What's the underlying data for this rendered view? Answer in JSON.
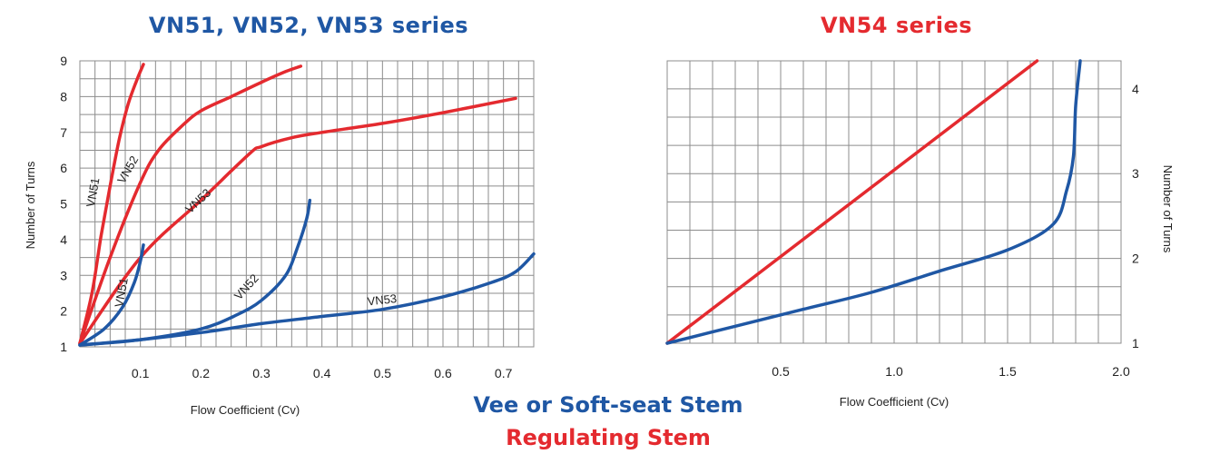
{
  "colors": {
    "vee_stem": "#1f57a4",
    "regulating_stem": "#e42a2f",
    "grid": "#8c8c8c",
    "text": "#222222"
  },
  "legend": {
    "vee_label": "Vee or Soft-seat Stem",
    "regulating_label": "Regulating Stem"
  },
  "chart_data": [
    {
      "type": "line",
      "title": "VN51, VN52, VN53 series",
      "xlabel": "Flow Coefficient (Cv)",
      "ylabel": "Number of Turns",
      "xlim": [
        0,
        0.75
      ],
      "ylim": [
        1,
        9
      ],
      "x_ticks": [
        "0.1",
        "0.2",
        "0.3",
        "0.4",
        "0.5",
        "0.6",
        "0.7"
      ],
      "y_ticks": [
        "1",
        "2",
        "3",
        "4",
        "5",
        "6",
        "7",
        "8",
        "9"
      ],
      "grid": true,
      "series": [
        {
          "name": "VN51",
          "stem": "regulating",
          "label": "VN51",
          "x": [
            0.0,
            0.02,
            0.035,
            0.05,
            0.065,
            0.08,
            0.095,
            0.105
          ],
          "y": [
            1.1,
            2.5,
            4.1,
            5.5,
            6.8,
            7.8,
            8.5,
            8.9
          ]
        },
        {
          "name": "VN52",
          "stem": "regulating",
          "label": "VN52",
          "x": [
            0.0,
            0.05,
            0.1,
            0.13,
            0.17,
            0.2,
            0.25,
            0.3,
            0.34,
            0.365
          ],
          "y": [
            1.1,
            3.5,
            5.6,
            6.5,
            7.2,
            7.6,
            8.0,
            8.4,
            8.7,
            8.85
          ]
        },
        {
          "name": "VN53",
          "stem": "regulating",
          "label": "VN53",
          "x": [
            0.0,
            0.1,
            0.2,
            0.28,
            0.3,
            0.35,
            0.4,
            0.5,
            0.6,
            0.72
          ],
          "y": [
            1.1,
            3.5,
            5.1,
            6.4,
            6.6,
            6.85,
            7.0,
            7.25,
            7.55,
            7.95
          ]
        },
        {
          "name": "VN51",
          "stem": "vee",
          "label": "VN51",
          "x": [
            0.0,
            0.04,
            0.07,
            0.09,
            0.1,
            0.105
          ],
          "y": [
            1.05,
            1.5,
            2.1,
            2.8,
            3.4,
            3.85
          ]
        },
        {
          "name": "VN52",
          "stem": "vee",
          "label": "VN52",
          "x": [
            0.0,
            0.1,
            0.2,
            0.26,
            0.3,
            0.34,
            0.36,
            0.375,
            0.38
          ],
          "y": [
            1.05,
            1.2,
            1.5,
            1.9,
            2.3,
            3.0,
            3.8,
            4.6,
            5.1
          ]
        },
        {
          "name": "VN53",
          "stem": "vee",
          "label": "VN53",
          "x": [
            0.0,
            0.1,
            0.2,
            0.3,
            0.4,
            0.5,
            0.6,
            0.68,
            0.72,
            0.75
          ],
          "y": [
            1.05,
            1.2,
            1.4,
            1.65,
            1.85,
            2.05,
            2.4,
            2.8,
            3.1,
            3.6
          ]
        }
      ]
    },
    {
      "type": "line",
      "title": "VN54 series",
      "xlabel": "Flow Coefficient (Cv)",
      "ylabel": "Number of Turns",
      "xlim": [
        0,
        2.0
      ],
      "ylim": [
        1,
        4.33
      ],
      "x_ticks": [
        "0.5",
        "1.0",
        "1.5",
        "2.0"
      ],
      "y_ticks": [
        "1",
        "2",
        "3",
        "4"
      ],
      "grid": true,
      "series": [
        {
          "stem": "regulating",
          "x": [
            0.0,
            1.63
          ],
          "y": [
            1.0,
            4.33
          ]
        },
        {
          "stem": "vee",
          "x": [
            0.0,
            0.3,
            0.6,
            0.9,
            1.2,
            1.5,
            1.7,
            1.76,
            1.79,
            1.8,
            1.82
          ],
          "y": [
            1.0,
            1.2,
            1.4,
            1.6,
            1.85,
            2.1,
            2.4,
            2.8,
            3.2,
            3.8,
            4.33
          ]
        }
      ]
    }
  ]
}
